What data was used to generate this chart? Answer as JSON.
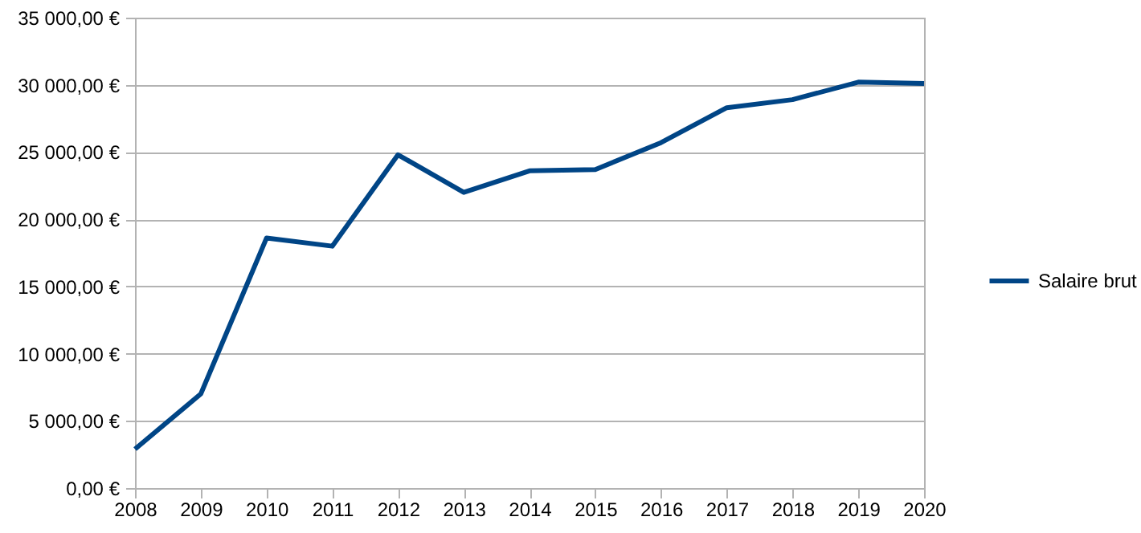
{
  "chart_data": {
    "type": "line",
    "x": [
      2008,
      2009,
      2010,
      2011,
      2012,
      2013,
      2014,
      2015,
      2016,
      2017,
      2018,
      2019,
      2020
    ],
    "series": [
      {
        "name": "Salaire brut",
        "color": "#004586",
        "values": [
          2900,
          7000,
          18600,
          18000,
          24800,
          22000,
          23600,
          23700,
          25700,
          28300,
          28900,
          30200,
          30100
        ]
      }
    ],
    "xlim": [
      2008,
      2020
    ],
    "xticks": [
      2008,
      2009,
      2010,
      2011,
      2012,
      2013,
      2014,
      2015,
      2016,
      2017,
      2018,
      2019,
      2020
    ],
    "ylim": [
      0,
      35000
    ],
    "yticks": [
      {
        "value": 0,
        "label": "0,00 €"
      },
      {
        "value": 5000,
        "label": "5 000,00 €"
      },
      {
        "value": 10000,
        "label": "10 000,00 €"
      },
      {
        "value": 15000,
        "label": "15 000,00 €"
      },
      {
        "value": 20000,
        "label": "20 000,00 €"
      },
      {
        "value": 25000,
        "label": "25 000,00 €"
      },
      {
        "value": 30000,
        "label": "30 000,00 €"
      },
      {
        "value": 35000,
        "label": "35 000,00 €"
      }
    ],
    "grid": "y",
    "legend": "right"
  }
}
